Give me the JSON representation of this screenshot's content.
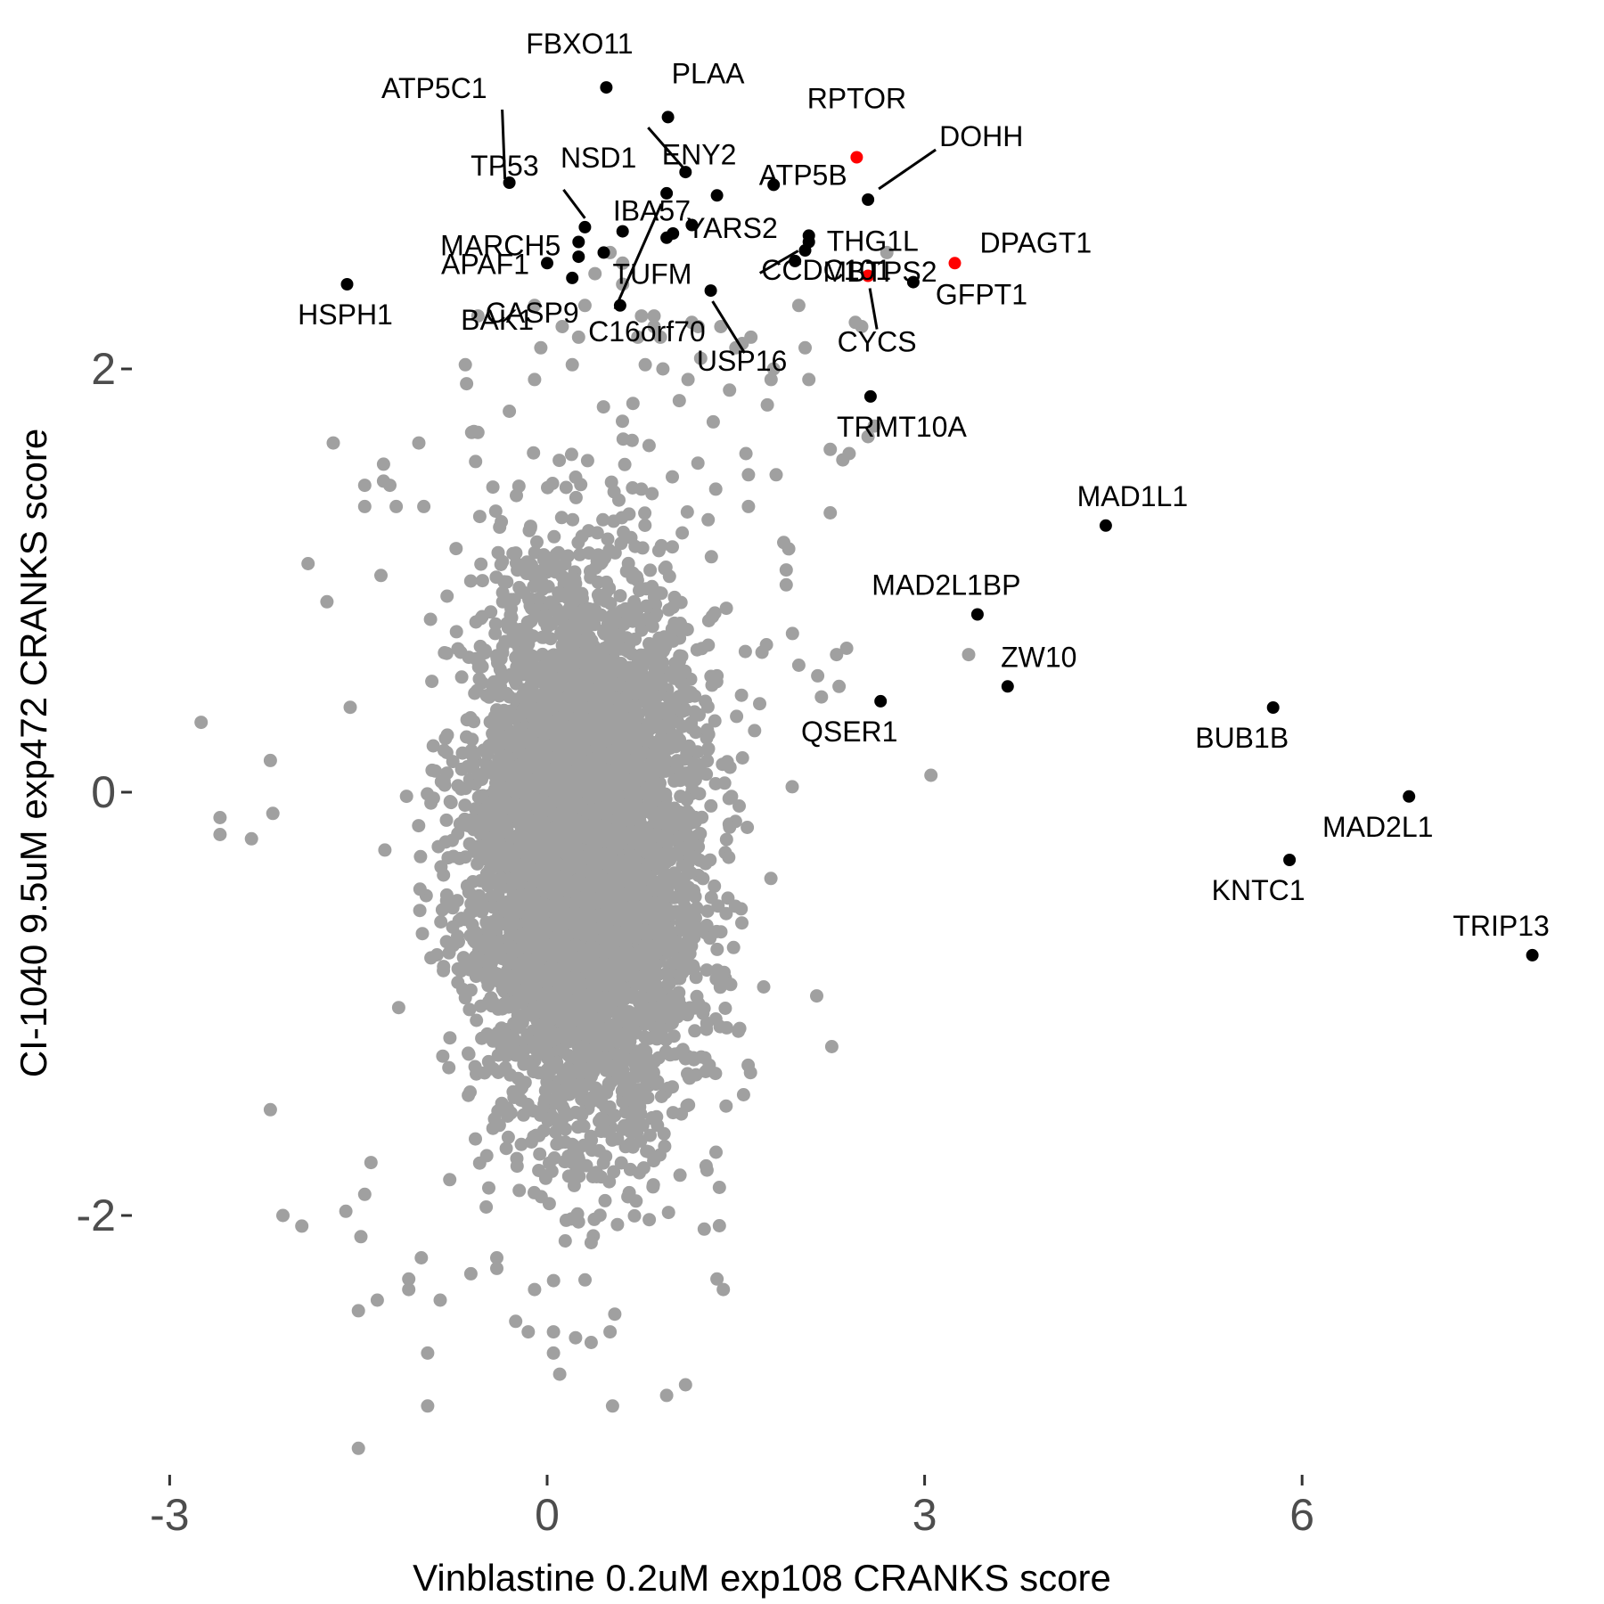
{
  "chart_data": {
    "type": "scatter",
    "xlabel": "Vinblastine 0.2uM exp108 CRANKS score",
    "ylabel": "CI-1040 9.5uM exp472 CRANKS score",
    "xlim": [
      -3.35,
      8.25
    ],
    "ylim": [
      -3.25,
      3.5
    ],
    "xticks": [
      {
        "value": -3,
        "label": "-3"
      },
      {
        "value": 0,
        "label": "0"
      },
      {
        "value": 3,
        "label": "3"
      },
      {
        "value": 6,
        "label": "6"
      }
    ],
    "yticks": [
      {
        "value": -2,
        "label": "-2"
      },
      {
        "value": 0,
        "label": "0"
      },
      {
        "value": 2,
        "label": "2"
      }
    ],
    "grid": false,
    "colors": {
      "background": "#ffffff",
      "bulk": "#a0a0a0",
      "highlight": "#000000",
      "special": "#ff0000"
    },
    "bulk_cloud": {
      "description": "dense cloud of ~18000 genes",
      "x_center": 0.3,
      "x_sd": 0.45,
      "y_center": -0.3,
      "y_sd": 0.65,
      "color": "#a0a0a0"
    },
    "outliers_gray": [
      [
        -2.75,
        0.33
      ],
      [
        -2.6,
        -0.12
      ],
      [
        -2.6,
        -0.2
      ],
      [
        -2.35,
        -0.22
      ],
      [
        -2.2,
        0.15
      ],
      [
        -2.18,
        -0.1
      ],
      [
        -2.2,
        -1.5
      ],
      [
        -2.1,
        -2.0
      ],
      [
        -1.95,
        -2.05
      ],
      [
        -1.9,
        1.08
      ],
      [
        -1.75,
        0.9
      ],
      [
        -1.7,
        1.65
      ],
      [
        -1.5,
        -2.45
      ],
      [
        -1.6,
        -1.98
      ],
      [
        -1.5,
        -3.1
      ],
      [
        -1.35,
        -2.4
      ],
      [
        -1.45,
        1.45
      ],
      [
        -1.45,
        1.35
      ],
      [
        -1.3,
        1.47
      ],
      [
        -1.25,
        1.45
      ],
      [
        -1.48,
        -2.1
      ],
      [
        -1.45,
        -1.9
      ],
      [
        -1.4,
        -1.75
      ],
      [
        -1.3,
        1.55
      ],
      [
        -1.2,
        1.35
      ],
      [
        -1.1,
        -2.35
      ],
      [
        -1.1,
        -2.3
      ],
      [
        -1.0,
        -2.2
      ],
      [
        -1.02,
        1.65
      ],
      [
        -0.98,
        1.35
      ],
      [
        -0.95,
        -2.65
      ],
      [
        -0.95,
        -2.9
      ],
      [
        -0.85,
        -2.4
      ],
      [
        -0.65,
        2.02
      ],
      [
        -0.64,
        1.93
      ],
      [
        -0.6,
        1.7
      ],
      [
        -0.55,
        2.25
      ],
      [
        -0.55,
        1.7
      ],
      [
        -0.4,
        -2.2
      ],
      [
        -0.4,
        -2.25
      ],
      [
        -0.3,
        1.8
      ],
      [
        -0.25,
        -2.5
      ],
      [
        -0.1,
        2.3
      ],
      [
        -0.1,
        1.95
      ],
      [
        -0.15,
        -2.55
      ],
      [
        -0.05,
        2.1
      ],
      [
        -0.1,
        -2.35
      ],
      [
        0.05,
        -2.55
      ],
      [
        0.05,
        -2.65
      ],
      [
        0.1,
        -2.75
      ],
      [
        0.12,
        2.2
      ],
      [
        0.2,
        2.02
      ],
      [
        0.25,
        2.15
      ],
      [
        0.3,
        2.3
      ],
      [
        0.35,
        -2.6
      ],
      [
        0.38,
        2.45
      ],
      [
        0.5,
        2.55
      ],
      [
        0.5,
        -2.55
      ],
      [
        0.52,
        -2.9
      ],
      [
        0.6,
        2.5
      ],
      [
        0.6,
        2.4
      ],
      [
        0.72,
        2.15
      ],
      [
        0.75,
        2.25
      ],
      [
        0.78,
        2.02
      ],
      [
        0.85,
        2.2
      ],
      [
        0.85,
        2.25
      ],
      [
        0.9,
        2.15
      ],
      [
        0.92,
        2.0
      ],
      [
        0.95,
        -2.85
      ],
      [
        1.1,
        -2.8
      ],
      [
        1.05,
        1.85
      ],
      [
        1.12,
        1.95
      ],
      [
        1.15,
        2.22
      ],
      [
        1.2,
        2.2
      ],
      [
        1.22,
        2.05
      ],
      [
        1.32,
        1.75
      ],
      [
        1.35,
        -2.3
      ],
      [
        1.4,
        -2.35
      ],
      [
        1.38,
        2.2
      ],
      [
        1.45,
        1.9
      ],
      [
        1.5,
        2.1
      ],
      [
        1.55,
        2.12
      ],
      [
        1.58,
        1.6
      ],
      [
        1.6,
        1.5
      ],
      [
        1.6,
        1.35
      ],
      [
        1.62,
        2.15
      ],
      [
        1.75,
        1.83
      ],
      [
        1.78,
        1.95
      ],
      [
        1.8,
        2.0
      ],
      [
        1.82,
        1.5
      ],
      [
        1.88,
        1.18
      ],
      [
        1.9,
        1.05
      ],
      [
        1.9,
        0.98
      ],
      [
        1.92,
        1.15
      ],
      [
        1.95,
        0.75
      ],
      [
        2.0,
        2.3
      ],
      [
        2.0,
        0.6
      ],
      [
        2.05,
        2.1
      ],
      [
        2.08,
        1.95
      ],
      [
        2.15,
        0.55
      ],
      [
        2.18,
        0.45
      ],
      [
        2.25,
        1.62
      ],
      [
        2.25,
        1.32
      ],
      [
        2.3,
        0.65
      ],
      [
        2.32,
        0.5
      ],
      [
        2.35,
        1.57
      ],
      [
        2.38,
        0.68
      ],
      [
        2.4,
        1.6
      ],
      [
        2.5,
        2.2
      ],
      [
        2.55,
        1.68
      ],
      [
        2.6,
        1.73
      ],
      [
        3.35,
        0.65
      ],
      [
        3.05,
        0.08
      ],
      [
        2.7,
        2.55
      ],
      [
        2.45,
        2.22
      ]
    ],
    "labeled_points": [
      {
        "name": "FBXO11",
        "x": 0.47,
        "y": 3.33,
        "color": "#000000"
      },
      {
        "name": "PLAA",
        "x": 0.96,
        "y": 3.19,
        "color": "#000000"
      },
      {
        "name": "NSD1",
        "x": 1.1,
        "y": 2.93,
        "color": "#000000"
      },
      {
        "name": "ATP5C1",
        "x": -0.3,
        "y": 2.88,
        "color": "#000000"
      },
      {
        "name": "RPTOR",
        "x": 2.46,
        "y": 3.0,
        "color": "#ff0000"
      },
      {
        "name": "ENY2",
        "x": 1.35,
        "y": 2.82,
        "color": "#000000"
      },
      {
        "name": "DOHH",
        "x": 2.55,
        "y": 2.8,
        "color": "#000000"
      },
      {
        "name": "TP53",
        "x": 0.3,
        "y": 2.67,
        "color": "#000000"
      },
      {
        "name": "ATP5B",
        "x": 1.8,
        "y": 2.87,
        "color": "#000000"
      },
      {
        "name": "IBA57",
        "x": 1.15,
        "y": 2.68,
        "color": "#000000"
      },
      {
        "name": "THG1L",
        "x": 2.08,
        "y": 2.6,
        "color": "#000000"
      },
      {
        "name": "MARCH5",
        "x": 0.25,
        "y": 2.6,
        "color": "#000000"
      },
      {
        "name": "YARS2",
        "x": 1.0,
        "y": 2.64,
        "color": "#000000"
      },
      {
        "name": "MBTPS2",
        "x": 2.05,
        "y": 2.56,
        "color": "#000000"
      },
      {
        "name": "DPAGT1",
        "x": 3.24,
        "y": 2.5,
        "color": "#ff0000"
      },
      {
        "name": "APAF1",
        "x": 0.0,
        "y": 2.5,
        "color": "#000000"
      },
      {
        "name": "TUFM",
        "x": 0.45,
        "y": 2.55,
        "color": "#000000"
      },
      {
        "name": "CYCS",
        "x": 2.55,
        "y": 2.44,
        "color": "#ff0000"
      },
      {
        "name": "GFPT1",
        "x": 2.91,
        "y": 2.41,
        "color": "#000000"
      },
      {
        "name": "HSPH1",
        "x": -1.59,
        "y": 2.4,
        "color": "#000000"
      },
      {
        "name": "CASP9",
        "x": 0.2,
        "y": 2.43,
        "color": "#000000"
      },
      {
        "name": "CCDC101",
        "x": 1.97,
        "y": 2.51,
        "color": "#000000"
      },
      {
        "name": "C16orf70",
        "x": 0.58,
        "y": 2.3,
        "color": "#000000"
      },
      {
        "name": "USP16",
        "x": 1.3,
        "y": 2.37,
        "color": "#000000"
      },
      {
        "name": "BAK1",
        "x": 0.95,
        "y": 2.83,
        "color": "#000000"
      },
      {
        "name": "TRMT10A",
        "x": 2.57,
        "y": 1.87,
        "color": "#000000"
      },
      {
        "name": "MAD1L1",
        "x": 4.44,
        "y": 1.26,
        "color": "#000000"
      },
      {
        "name": "MAD2L1BP",
        "x": 3.42,
        "y": 0.84,
        "color": "#000000"
      },
      {
        "name": "ZW10",
        "x": 3.66,
        "y": 0.5,
        "color": "#000000"
      },
      {
        "name": "QSER1",
        "x": 2.65,
        "y": 0.43,
        "color": "#000000"
      },
      {
        "name": "BUB1B",
        "x": 5.77,
        "y": 0.4,
        "color": "#000000"
      },
      {
        "name": "MAD2L1",
        "x": 6.85,
        "y": -0.02,
        "color": "#000000"
      },
      {
        "name": "KNTC1",
        "x": 5.9,
        "y": -0.32,
        "color": "#000000"
      },
      {
        "name": "TRIP13",
        "x": 7.83,
        "y": -0.77,
        "color": "#000000"
      }
    ],
    "extra_black_points": [
      [
        0.95,
        2.62
      ],
      [
        0.25,
        2.53
      ],
      [
        2.08,
        2.63
      ],
      [
        0.6,
        2.65
      ]
    ]
  }
}
